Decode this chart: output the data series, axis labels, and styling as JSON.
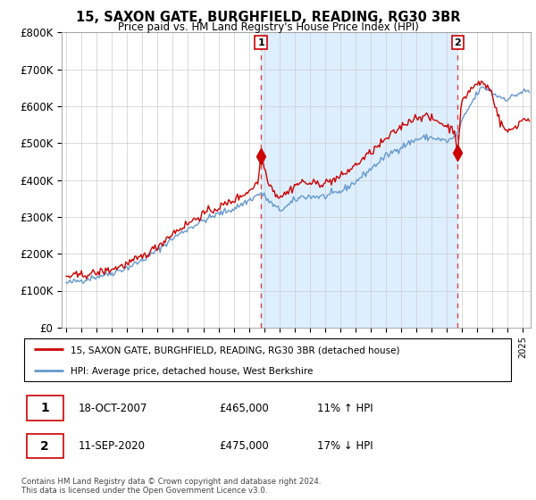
{
  "title": "15, SAXON GATE, BURGHFIELD, READING, RG30 3BR",
  "subtitle": "Price paid vs. HM Land Registry's House Price Index (HPI)",
  "legend_line1": "15, SAXON GATE, BURGHFIELD, READING, RG30 3BR (detached house)",
  "legend_line2": "HPI: Average price, detached house, West Berkshire",
  "transaction1_date": "18-OCT-2007",
  "transaction1_price": "£465,000",
  "transaction1_hpi": "11% ↑ HPI",
  "transaction2_date": "11-SEP-2020",
  "transaction2_price": "£475,000",
  "transaction2_hpi": "17% ↓ HPI",
  "footer": "Contains HM Land Registry data © Crown copyright and database right 2024.\nThis data is licensed under the Open Government Licence v3.0.",
  "sale1_year": 2007.79,
  "sale1_price": 465000,
  "sale2_year": 2020.7,
  "sale2_price": 475000,
  "red_line_color": "#cc0000",
  "blue_line_color": "#6699cc",
  "marker_color": "#cc0000",
  "dashed_line_color": "#dd4444",
  "shade_color": "#ddeeff",
  "ylim": [
    0,
    800000
  ],
  "yticks": [
    0,
    100000,
    200000,
    300000,
    400000,
    500000,
    600000,
    700000,
    800000
  ],
  "background_color": "#ffffff",
  "grid_color": "#cccccc"
}
